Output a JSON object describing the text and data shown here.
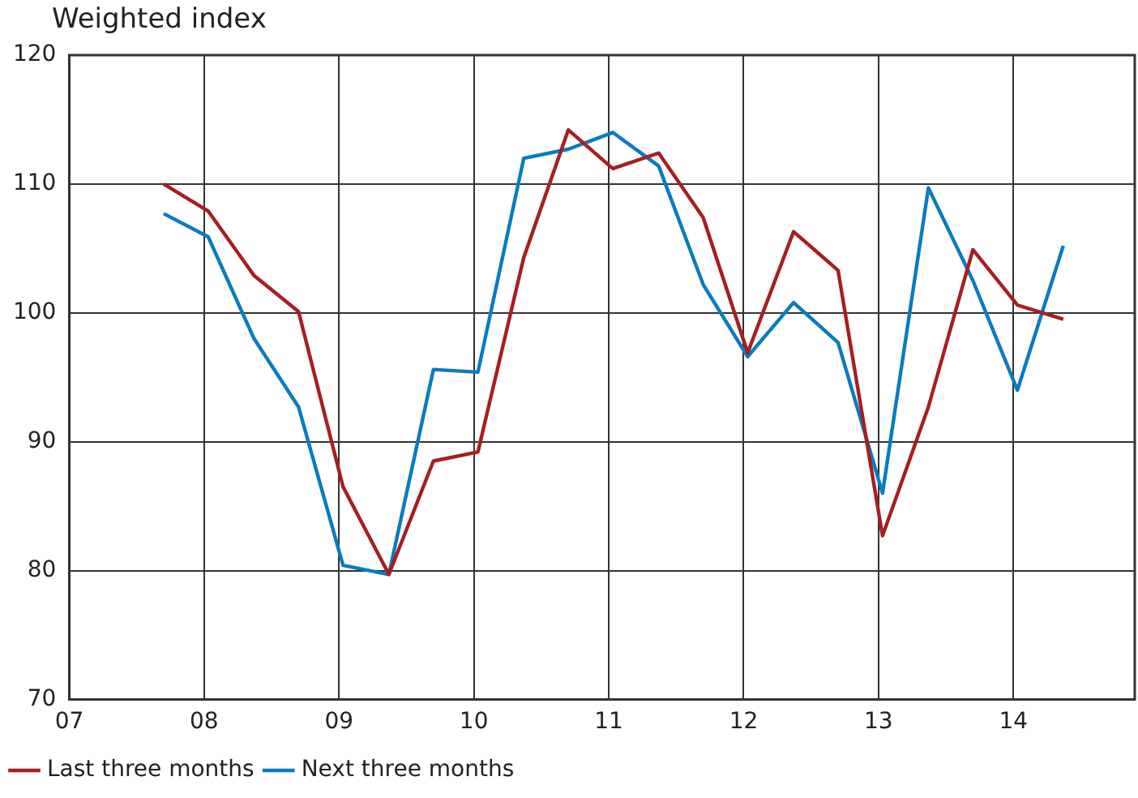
{
  "chart_data": {
    "type": "line",
    "subtitle": "Weighted index",
    "x": [
      7.7,
      8.03,
      8.37,
      8.7,
      9.03,
      9.37,
      9.7,
      10.03,
      10.37,
      10.7,
      11.03,
      11.37,
      11.7,
      12.03,
      12.37,
      12.7,
      13.03,
      13.37,
      13.7,
      14.03,
      14.37
    ],
    "series": [
      {
        "name": "Last three months",
        "color": "#a51e22",
        "values": [
          110,
          107.9,
          102.9,
          100.1,
          86.5,
          79.7,
          88.5,
          89.2,
          104.3,
          114.2,
          111.2,
          112.4,
          107.4,
          96.9,
          106.3,
          103.3,
          82.7,
          92.7,
          104.9,
          100.6,
          99.5
        ]
      },
      {
        "name": "Next three months",
        "color": "#0a7bbf",
        "values": [
          107.7,
          105.9,
          98,
          92.7,
          80.4,
          79.7,
          95.6,
          95.4,
          112,
          112.7,
          114,
          111.4,
          102.2,
          96.6,
          100.8,
          97.7,
          86,
          109.7,
          102.5,
          94,
          105.2
        ]
      }
    ],
    "xlim": [
      7,
      14.9
    ],
    "xticks": [
      {
        "value": 7,
        "label": "07"
      },
      {
        "value": 8,
        "label": "08"
      },
      {
        "value": 9,
        "label": "09"
      },
      {
        "value": 10,
        "label": "10"
      },
      {
        "value": 11,
        "label": "11"
      },
      {
        "value": 12,
        "label": "12"
      },
      {
        "value": 13,
        "label": "13"
      },
      {
        "value": 14,
        "label": "14"
      }
    ],
    "ylim": [
      70,
      120
    ],
    "yticks": [
      70,
      80,
      90,
      100,
      110,
      120
    ],
    "grid": true,
    "legend": "bottom left",
    "marker": "none",
    "line_style": "solid"
  }
}
